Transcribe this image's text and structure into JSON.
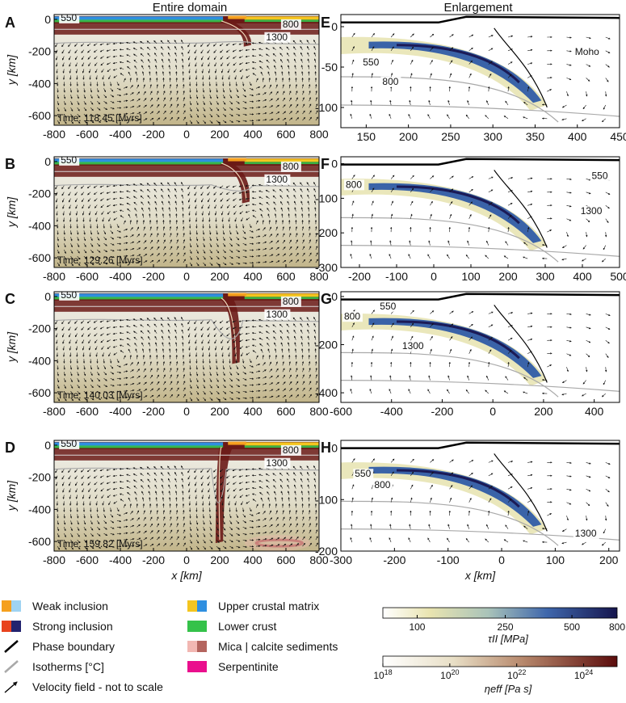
{
  "colors": {
    "mantle_top": "#efeee8",
    "mantle_bottom": "#c9bd94",
    "lithosphere": "#6b1a16",
    "upper_crust_yellow": "#f4c51f",
    "upper_crust_blue": "#2f8fe0",
    "lower_crust_green": "#35c24a",
    "weak_orange": "#f5a01e",
    "weak_lightblue": "#9fd3f2",
    "strong_red": "#e8431e",
    "strong_navy": "#22236f",
    "mica_pink": "#f2b7b2",
    "calcite_brown": "#b4645e",
    "serpentinite": "#ea0f8d",
    "isotherm": "#a9a9a9",
    "phase_boundary": "#000000",
    "stress_blue": "#3a63a8",
    "stress_navy": "#1b1b57",
    "stress_pale": "#e8e4b4"
  },
  "headers": {
    "left": "Entire domain",
    "right": "Enlargement"
  },
  "chart_data": [
    {
      "panel": "A",
      "type": "heatmap",
      "title": "Entire domain",
      "xlim": [
        -800,
        800
      ],
      "ylim": [
        -660,
        30
      ],
      "xticks": [
        "-800",
        "-600",
        "-400",
        "-200",
        "0",
        "200",
        "400",
        "600",
        "800"
      ],
      "yticks": [
        "0",
        "-200",
        "-400",
        "-600"
      ],
      "ylabel": "y [km]",
      "xlabel": "",
      "time": "Time: 118.45 [Myrs]",
      "isotherm_labels": [
        "550",
        "800",
        "1300"
      ],
      "slab_bottom_x": 370,
      "slab_bottom_y": -170
    },
    {
      "panel": "B",
      "type": "heatmap",
      "xlim": [
        -800,
        800
      ],
      "ylim": [
        -660,
        30
      ],
      "xticks": [
        "-800",
        "-600",
        "-400",
        "-200",
        "0",
        "200",
        "400",
        "600",
        "800"
      ],
      "yticks": [
        "0",
        "-200",
        "-400",
        "-600"
      ],
      "ylabel": "y [km]",
      "xlabel": "",
      "time": "Time: 129.26 [Myrs]",
      "isotherm_labels": [
        "550",
        "800",
        "1300"
      ],
      "slab_bottom_x": 360,
      "slab_bottom_y": -260
    },
    {
      "panel": "C",
      "type": "heatmap",
      "xlim": [
        -800,
        800
      ],
      "ylim": [
        -660,
        30
      ],
      "xticks": [
        "-800",
        "-600",
        "-400",
        "-200",
        "0",
        "200",
        "400",
        "600",
        "800"
      ],
      "yticks": [
        "0",
        "-200",
        "-400",
        "-600"
      ],
      "ylabel": "y [km]",
      "xlabel": "",
      "time": "Time: 140.03 [Myrs]",
      "isotherm_labels": [
        "550",
        "800",
        "1300"
      ],
      "slab_bottom_x": 300,
      "slab_bottom_y": -420
    },
    {
      "panel": "D",
      "type": "heatmap",
      "xlim": [
        -800,
        800
      ],
      "ylim": [
        -660,
        30
      ],
      "xticks": [
        "-800",
        "-600",
        "-400",
        "-200",
        "0",
        "200",
        "400",
        "600",
        "800"
      ],
      "yticks": [
        "0",
        "-200",
        "-400",
        "-600"
      ],
      "ylabel": "y [km]",
      "xlabel": "x [km]",
      "time": "Time: 159.82 [Myrs]",
      "isotherm_labels": [
        "550",
        "800",
        "1300"
      ],
      "slab_bottom_x": 200,
      "slab_bottom_y": -610
    },
    {
      "panel": "E",
      "type": "heatmap",
      "title": "Enlargement",
      "xlim": [
        120,
        450
      ],
      "ylim": [
        -125,
        15
      ],
      "xticks": [
        "150",
        "200",
        "250",
        "300",
        "350",
        "400",
        "450"
      ],
      "yticks": [
        "0",
        "-50",
        "-100"
      ],
      "xlabel": "",
      "isotherm_labels": [
        "550",
        "800"
      ],
      "extra_label": "Moho"
    },
    {
      "panel": "F",
      "type": "heatmap",
      "xlim": [
        -250,
        500
      ],
      "ylim": [
        -300,
        20
      ],
      "xticks": [
        "-200",
        "-100",
        "0",
        "100",
        "200",
        "300",
        "400",
        "500"
      ],
      "yticks": [
        "0",
        "-100",
        "-200",
        "-300"
      ],
      "xlabel": "",
      "isotherm_labels": [
        "550",
        "800",
        "1300"
      ]
    },
    {
      "panel": "G",
      "type": "heatmap",
      "xlim": [
        -600,
        500
      ],
      "ylim": [
        -440,
        20
      ],
      "xticks": [
        "-600",
        "-400",
        "-200",
        "0",
        "200",
        "400"
      ],
      "yticks": [
        "0",
        "-200",
        "-400"
      ],
      "xlabel": "",
      "isotherm_labels": [
        "550",
        "800",
        "1300"
      ]
    },
    {
      "panel": "H",
      "type": "heatmap",
      "xlim": [
        -300,
        220
      ],
      "ylim": [
        -200,
        15
      ],
      "xticks": [
        "-300",
        "-200",
        "-100",
        "0",
        "100",
        "200"
      ],
      "yticks": [
        "0",
        "-100",
        "-200"
      ],
      "xlabel": "x [km]",
      "isotherm_labels": [
        "550",
        "800",
        "1300"
      ]
    }
  ],
  "legend": {
    "items": [
      {
        "label": "Weak inclusion",
        "swatch": "weak"
      },
      {
        "label": "Strong inclusion",
        "swatch": "strong"
      },
      {
        "label": "Phase boundary",
        "swatch": "phase"
      },
      {
        "label": "Isotherms [°C]",
        "swatch": "isotherm"
      },
      {
        "label": "Velocity field - not to scale",
        "swatch": "arrow"
      },
      {
        "label": "Upper crustal matrix",
        "swatch": "upper"
      },
      {
        "label": "Lower crust",
        "swatch": "lower"
      },
      {
        "label": "Mica | calcite sediments",
        "swatch": "mica"
      },
      {
        "label": "Serpentinite",
        "swatch": "serp"
      }
    ]
  },
  "colorbars": {
    "stress": {
      "ticks": [
        "100",
        "250",
        "500",
        "800"
      ],
      "tick_values": [
        100,
        250,
        500,
        800
      ],
      "range": [
        70,
        800
      ],
      "label": "τII [MPa]"
    },
    "viscosity": {
      "ticks": [
        "18",
        "20",
        "22",
        "24"
      ],
      "tick_values": [
        18,
        20,
        22,
        24
      ],
      "range": [
        18,
        25
      ],
      "base": "10",
      "label": "ηeff [Pa s]"
    }
  }
}
